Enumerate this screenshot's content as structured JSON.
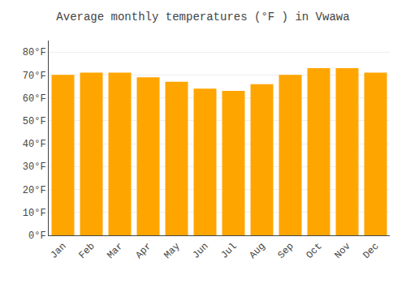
{
  "chart_data": {
    "type": "bar",
    "title": "Average monthly temperatures (°F ) in Vwawa",
    "categories": [
      "Jan",
      "Feb",
      "Mar",
      "Apr",
      "May",
      "Jun",
      "Jul",
      "Aug",
      "Sep",
      "Oct",
      "Nov",
      "Dec"
    ],
    "values": [
      70,
      71,
      71,
      69,
      67,
      64,
      63,
      66,
      70,
      73,
      73,
      71
    ],
    "color": "#FFA500",
    "ylim": [
      0,
      85
    ],
    "yticks": [
      {
        "value": 0,
        "label": "0°F"
      },
      {
        "value": 10,
        "label": "10°F"
      },
      {
        "value": 20,
        "label": "20°F"
      },
      {
        "value": 30,
        "label": "30°F"
      },
      {
        "value": 40,
        "label": "40°F"
      },
      {
        "value": 50,
        "label": "50°F"
      },
      {
        "value": 60,
        "label": "60°F"
      },
      {
        "value": 70,
        "label": "70°F"
      },
      {
        "value": 80,
        "label": "80°F"
      }
    ],
    "grid": true
  }
}
